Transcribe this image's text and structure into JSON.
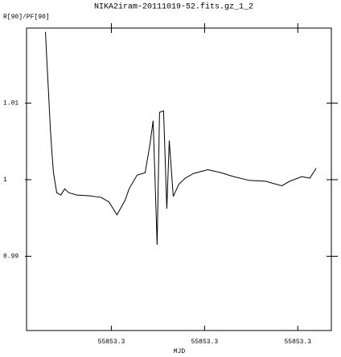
{
  "chart_data": {
    "type": "line",
    "title": "NIKA2iram-20111019-52.fits.gz_1_2",
    "y_label": "R[90]/PF[90]",
    "x_label": "MJD",
    "x": [
      55853.29293,
      55853.2931,
      55853.29328,
      55853.29345,
      55853.29362,
      55853.29379,
      55853.29414,
      55853.29457,
      55853.295,
      55853.29543,
      55853.29629,
      55853.29759,
      55853.29888,
      55853.29974,
      55853.3006,
      55853.30147,
      55853.3019,
      55853.30276,
      55853.30362,
      55853.30414,
      55853.30448,
      55853.30491,
      55853.30517,
      55853.3056,
      55853.30595,
      55853.30621,
      55853.30664,
      55853.30724,
      55853.30793,
      55853.30879,
      55853.31034,
      55853.31181,
      55853.3131,
      55853.31483,
      55853.31655,
      55853.31828,
      55853.31914,
      55853.32043,
      55853.32129,
      55853.32198
    ],
    "series": [
      {
        "color": "#000000",
        "values": [
          1.0193,
          1.0151,
          1.0109,
          1.0067,
          1.0036,
          1.0009,
          0.9983,
          0.998,
          0.9988,
          0.9983,
          0.998,
          0.9979,
          0.9977,
          0.9971,
          0.9954,
          0.9973,
          0.9988,
          1.0006,
          1.0009,
          1.0046,
          1.0077,
          0.9915,
          1.0088,
          1.009,
          0.9962,
          1.0051,
          0.9978,
          0.9994,
          1.0002,
          1.0008,
          1.0013,
          1.0009,
          1.0004,
          0.9999,
          0.9998,
          0.9992,
          0.9998,
          1.0004,
          1.0002,
          1.0015
        ]
      }
    ],
    "xlim": [
      55853.2909,
      55853.3236
    ],
    "xticks": [
      {
        "value": 55853.3,
        "label": "55853.3"
      },
      {
        "value": 55853.31,
        "label": "55853.3"
      },
      {
        "value": 55853.32,
        "label": "55853.3"
      }
    ],
    "ylim": [
      0.9803,
      1.0198
    ],
    "yticks": [
      0.99,
      1,
      1.01
    ]
  }
}
